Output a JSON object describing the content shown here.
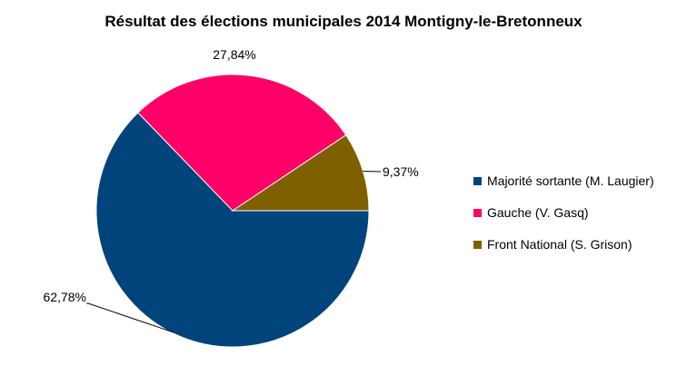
{
  "chart_data": {
    "type": "pie",
    "title": "Résultat des élections municipales 2014 Montigny-le-Bretonneux",
    "legend_position": "right",
    "slices": [
      {
        "label": "Majorité sortante (M. Laugier)",
        "value": 62.78,
        "data_label": "62,78%",
        "color": "#00447c"
      },
      {
        "label": "Gauche (V. Gasq)",
        "value": 27.84,
        "data_label": "27,84%",
        "color": "#ff0066"
      },
      {
        "label": "Front National (S. Grison)",
        "value": 9.37,
        "data_label": "9,37%",
        "color": "#7f6000"
      }
    ]
  }
}
